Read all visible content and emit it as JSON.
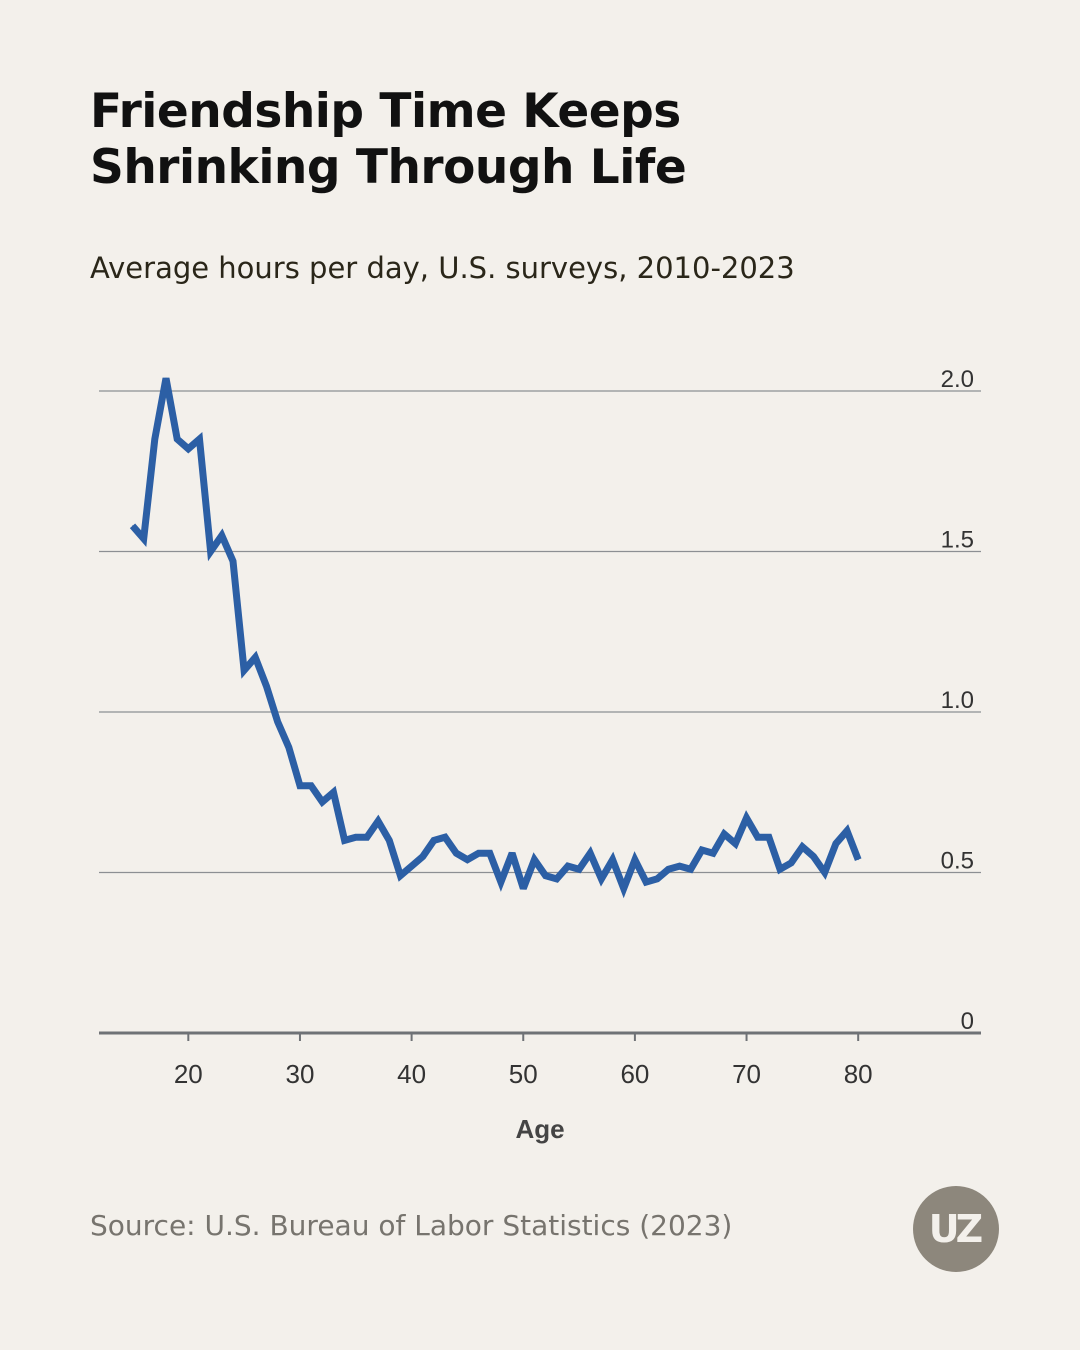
{
  "header": {
    "title_line1": "Friendship Time Keeps",
    "title_line2": "Shrinking Through Life",
    "subtitle": "Average hours per day, U.S. surveys, 2010-2023"
  },
  "footer": {
    "source": "Source: U.S. Bureau of Labor Statistics (2023)",
    "logo_text": "UZ"
  },
  "colors": {
    "background": "#f3f0eb",
    "line": "#2c5fa5",
    "grid": "#8c8f93",
    "axis": "#6f7276",
    "tick_text": "#333333"
  },
  "chart_data": {
    "type": "line",
    "title": "Friendship Time Keeps Shrinking Through Life",
    "subtitle": "Average hours per day, U.S. surveys, 2010-2023",
    "xlabel": "Age",
    "ylabel": "",
    "xlim": [
      12,
      91
    ],
    "ylim": [
      0,
      2.0
    ],
    "xticks": [
      20,
      30,
      40,
      50,
      60,
      70,
      80
    ],
    "xtick_labels": [
      "20",
      "30",
      "40",
      "50",
      "60",
      "70",
      "80"
    ],
    "yticks": [
      0,
      0.5,
      1.0,
      1.5,
      2.0
    ],
    "ytick_labels": [
      "0",
      "0.5",
      "1.0",
      "1.5",
      "2.0"
    ],
    "y_axis_position": "right",
    "grid": true,
    "series": [
      {
        "name": "Average hours per day",
        "x": [
          15,
          16,
          17,
          18,
          19,
          20,
          21,
          22,
          23,
          24,
          25,
          26,
          27,
          28,
          29,
          30,
          31,
          32,
          33,
          34,
          35,
          36,
          37,
          38,
          39,
          40,
          41,
          42,
          43,
          44,
          45,
          46,
          47,
          48,
          49,
          50,
          51,
          52,
          53,
          54,
          55,
          56,
          57,
          58,
          59,
          60,
          61,
          62,
          63,
          64,
          65,
          66,
          67,
          68,
          69,
          70,
          71,
          72,
          73,
          74,
          75,
          76,
          77,
          78,
          79,
          80
        ],
        "values": [
          1.58,
          1.54,
          1.85,
          2.04,
          1.85,
          1.82,
          1.85,
          1.5,
          1.55,
          1.47,
          1.13,
          1.17,
          1.08,
          0.97,
          0.89,
          0.77,
          0.77,
          0.72,
          0.75,
          0.6,
          0.61,
          0.61,
          0.66,
          0.6,
          0.49,
          0.52,
          0.55,
          0.6,
          0.61,
          0.56,
          0.54,
          0.56,
          0.56,
          0.47,
          0.56,
          0.45,
          0.54,
          0.49,
          0.48,
          0.52,
          0.51,
          0.56,
          0.48,
          0.54,
          0.45,
          0.54,
          0.47,
          0.48,
          0.51,
          0.52,
          0.51,
          0.57,
          0.56,
          0.62,
          0.59,
          0.67,
          0.61,
          0.61,
          0.51,
          0.53,
          0.58,
          0.55,
          0.5,
          0.59,
          0.63,
          0.54
        ]
      }
    ]
  }
}
